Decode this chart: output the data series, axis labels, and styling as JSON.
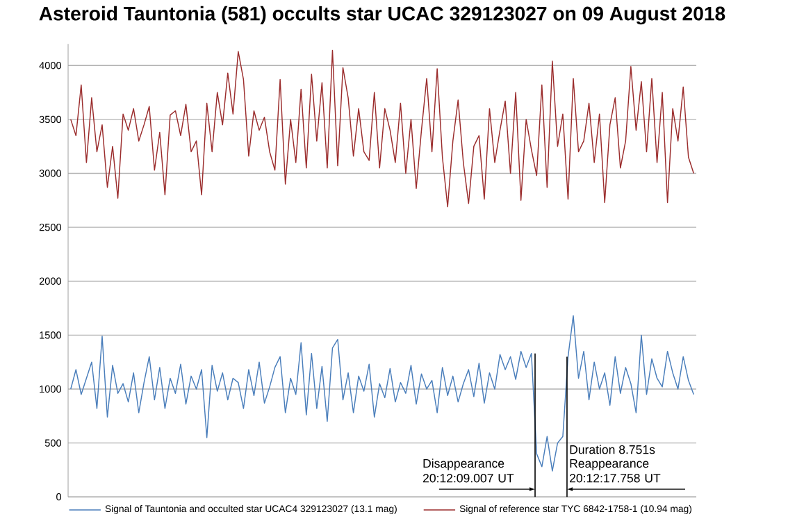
{
  "chart_data": {
    "type": "line",
    "title": "Asteroid Tauntonia (581) occults star UCAC 329123027 on 09 August 2018",
    "categories": [
      null,
      null,
      null,
      null,
      null,
      null,
      null,
      null,
      null,
      null,
      null,
      null,
      null,
      null,
      null,
      null,
      null,
      null,
      null,
      null,
      null,
      null,
      null,
      null,
      null,
      null,
      null,
      null,
      null,
      null,
      null,
      null,
      null,
      null,
      null,
      null,
      null,
      null,
      null,
      null,
      null,
      null,
      null,
      null,
      null,
      null,
      null,
      null,
      null,
      null,
      null,
      null,
      null,
      null,
      null,
      null,
      null,
      null,
      null,
      null,
      null,
      null,
      null,
      null,
      null,
      null,
      null,
      null,
      null,
      null,
      null,
      null,
      null,
      null,
      null,
      null,
      null,
      null,
      null,
      null,
      null,
      null,
      null,
      null,
      null,
      null,
      null,
      null,
      null,
      null,
      null,
      null,
      null,
      null,
      null,
      null,
      null,
      null,
      null,
      null,
      null,
      null,
      null,
      null,
      null,
      null,
      null,
      null,
      null,
      null,
      null,
      null,
      null,
      null,
      null,
      null,
      null,
      null,
      null,
      null
    ],
    "series": [
      {
        "name": "Signal of Tauntonia and occulted star UCAC4 329123027 (13.1 mag)",
        "color": "#4a7ebb",
        "values": [
          1000,
          1180,
          950,
          1100,
          1250,
          820,
          1490,
          740,
          1220,
          960,
          1050,
          880,
          1150,
          780,
          1060,
          1300,
          900,
          1200,
          820,
          1100,
          960,
          1230,
          860,
          1120,
          1000,
          1180,
          550,
          1220,
          980,
          1150,
          900,
          1100,
          1060,
          820,
          1180,
          940,
          1250,
          870,
          1020,
          1200,
          1300,
          780,
          1100,
          950,
          1430,
          760,
          1330,
          820,
          1210,
          700,
          1380,
          1460,
          900,
          1150,
          780,
          1120,
          980,
          1230,
          740,
          1050,
          920,
          1190,
          880,
          1060,
          960,
          1220,
          860,
          1140,
          1000,
          1080,
          780,
          1200,
          940,
          1120,
          880,
          1050,
          1180,
          930,
          1240,
          870,
          1150,
          1000,
          1320,
          1180,
          1300,
          1090,
          1350,
          1200,
          1330,
          400,
          280,
          560,
          240,
          500,
          560,
          1300,
          1680,
          1100,
          1350,
          900,
          1250,
          1000,
          1150,
          850,
          1300,
          960,
          1200,
          1050,
          780,
          1500,
          950,
          1280,
          1100,
          1020,
          1350,
          1150,
          1000,
          1300,
          1080,
          950
        ]
      },
      {
        "name": "Signal of reference star TYC 6842-1758-1 (10.94 mag)",
        "color": "#9b2d2d",
        "values": [
          3500,
          3350,
          3820,
          3100,
          3700,
          3200,
          3450,
          2870,
          3250,
          2770,
          3550,
          3400,
          3600,
          3300,
          3450,
          3620,
          3030,
          3380,
          2800,
          3540,
          3580,
          3350,
          3640,
          3200,
          3300,
          2800,
          3650,
          3200,
          3750,
          3450,
          3930,
          3550,
          4130,
          3870,
          3160,
          3580,
          3400,
          3520,
          3200,
          3030,
          3870,
          2900,
          3500,
          3100,
          3780,
          3050,
          3920,
          3300,
          3840,
          3050,
          4140,
          3070,
          3980,
          3700,
          3160,
          3600,
          3200,
          3120,
          3750,
          3050,
          3600,
          3400,
          3100,
          3650,
          3000,
          3500,
          2860,
          3400,
          3880,
          3200,
          3970,
          3150,
          2690,
          3300,
          3680,
          3100,
          2720,
          3250,
          3350,
          2760,
          3600,
          3100,
          3400,
          3670,
          3000,
          3750,
          2750,
          3500,
          3220,
          2980,
          3820,
          2870,
          4040,
          3250,
          3550,
          2760,
          3880,
          3200,
          3300,
          3650,
          3100,
          3550,
          2730,
          3450,
          3700,
          3050,
          3300,
          3990,
          3400,
          3850,
          3200,
          3880,
          3100,
          3750,
          2730,
          3600,
          3300,
          3800,
          3150,
          3000
        ]
      }
    ],
    "ylim": [
      0,
      4200
    ],
    "yticks": [
      0,
      500,
      1000,
      1500,
      2000,
      2500,
      3000,
      3500,
      4000
    ],
    "grid": "y",
    "legend": "bottom",
    "tick_labels": "y",
    "annotations": [
      "Disappearance 20:12:09.007 UT",
      "Reappearance 20:12:17.758 UT",
      "Duration 8.751s"
    ]
  }
}
